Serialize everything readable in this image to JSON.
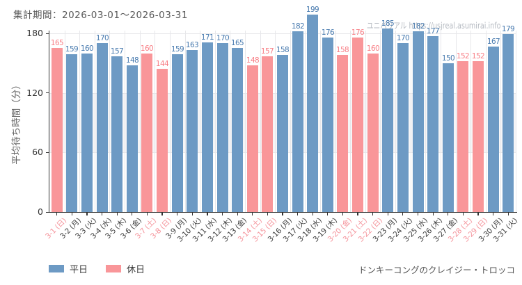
{
  "header": {
    "period": "集計期間：2026-03-01～2026-03-31"
  },
  "watermark": "ユニバリアル https://usjreal.asumirai.info",
  "footer": {
    "attraction": "ドンキーコングのクレイジー・トロッコ"
  },
  "legend": [
    {
      "label": "平日",
      "type": "weekday"
    },
    {
      "label": "休日",
      "type": "holiday"
    }
  ],
  "colors": {
    "weekday_bar": "#6d9ac4",
    "weekday_label": "#4679ae",
    "weekday_tick": "#3c3c3c",
    "holiday_bar": "#f99699",
    "holiday_label": "#f87e85",
    "holiday_tick": "#f5939b",
    "axis": "#333333",
    "grid": "#e7e7ea",
    "band": "#f5f5f7",
    "watermark": "#b5bac1"
  },
  "chart_data": {
    "type": "bar",
    "title": "",
    "xlabel": "",
    "ylabel": "平均待ち時間（分）",
    "yticks": [
      0,
      60,
      120,
      180
    ],
    "ylim": [
      0,
      180
    ],
    "shaded_band": [
      60,
      120
    ],
    "grid": "on",
    "legend_position": "bottom-left",
    "categories": [
      "3-1 (日)",
      "3-2 (月)",
      "3-3 (火)",
      "3-4 (水)",
      "3-5 (木)",
      "3-6 (金)",
      "3-7 (土)",
      "3-8 (日)",
      "3-9 (月)",
      "3-10 (火)",
      "3-11 (水)",
      "3-12 (木)",
      "3-13 (金)",
      "3-14 (土)",
      "3-15 (日)",
      "3-16 (月)",
      "3-17 (火)",
      "3-18 (水)",
      "3-19 (木)",
      "3-20 (金)",
      "3-21 (土)",
      "3-22 (日)",
      "3-23 (月)",
      "3-24 (火)",
      "3-25 (水)",
      "3-26 (木)",
      "3-27 (金)",
      "3-28 (土)",
      "3-29 (日)",
      "3-30 (月)",
      "3-31 (火)"
    ],
    "values": [
      165,
      159,
      160,
      170,
      157,
      148,
      160,
      144,
      159,
      163,
      171,
      170,
      165,
      148,
      157,
      158,
      182,
      199,
      176,
      158,
      176,
      160,
      185,
      170,
      182,
      177,
      150,
      152,
      152,
      167,
      179
    ],
    "day_type": [
      "holiday",
      "weekday",
      "weekday",
      "weekday",
      "weekday",
      "weekday",
      "holiday",
      "holiday",
      "weekday",
      "weekday",
      "weekday",
      "weekday",
      "weekday",
      "holiday",
      "holiday",
      "weekday",
      "weekday",
      "weekday",
      "weekday",
      "holiday",
      "holiday",
      "holiday",
      "weekday",
      "weekday",
      "weekday",
      "weekday",
      "weekday",
      "holiday",
      "holiday",
      "weekday",
      "weekday"
    ],
    "series_name_weekday": "平日",
    "series_name_holiday": "休日"
  }
}
